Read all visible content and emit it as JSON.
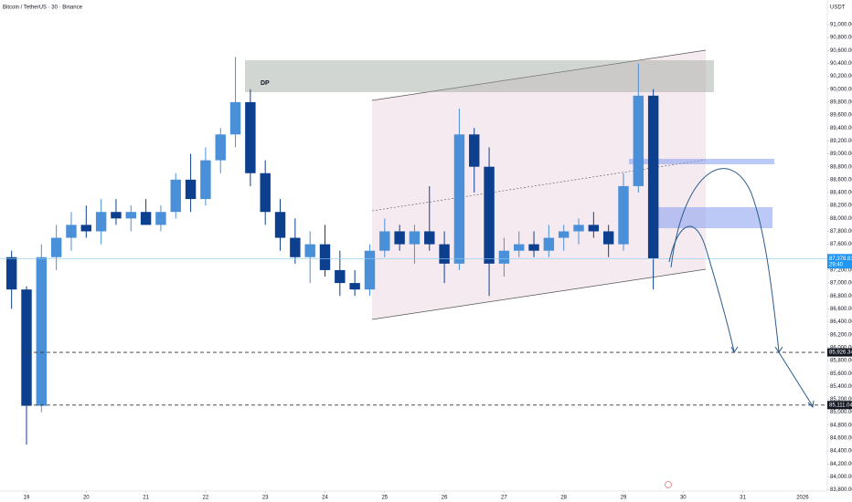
{
  "chart_data": {
    "type": "candlestick",
    "title": "Bitcoin / TetherUS · 30 · Binance",
    "currency": "USDT",
    "annotation": "DP",
    "countdown": "29:40",
    "up_color": "#4a90d9",
    "down_color": "#0d3f8f",
    "grid": false,
    "xlim": [
      18.556,
      32.415
    ],
    "ylim": [
      83780,
      91381
    ],
    "xticks": [
      19,
      20,
      21,
      22,
      23,
      24,
      25,
      26,
      27,
      28,
      29,
      30,
      31,
      {
        "value": 32,
        "label": "2026"
      }
    ],
    "yticks": [
      {
        "value": 83800,
        "label": "83,800.00"
      },
      {
        "value": 84000,
        "label": "84,000.00"
      },
      {
        "value": 84200,
        "label": "84,200.00"
      },
      {
        "value": 84400,
        "label": "84,400.00"
      },
      {
        "value": 84600,
        "label": "84,600.00"
      },
      {
        "value": 84800,
        "label": "84,800.00"
      },
      {
        "value": 85000,
        "label": "85,000.00"
      },
      {
        "value": 85200,
        "label": "85,200.00"
      },
      {
        "value": 85400,
        "label": "85,400.00"
      },
      {
        "value": 85600,
        "label": "85,600.00"
      },
      {
        "value": 85800,
        "label": "85,800.00"
      },
      {
        "value": 86000,
        "label": "86,000.00"
      },
      {
        "value": 86200,
        "label": "86,200.00"
      },
      {
        "value": 86400,
        "label": "86,400.00"
      },
      {
        "value": 86600,
        "label": "86,600.00"
      },
      {
        "value": 86800,
        "label": "86,800.00"
      },
      {
        "value": 87000,
        "label": "87,000.00"
      },
      {
        "value": 87200,
        "label": "87,200.00"
      },
      {
        "value": 87400,
        "label": "87,400.00"
      },
      {
        "value": 87600,
        "label": "87,600.00"
      },
      {
        "value": 87800,
        "label": "87,800.00"
      },
      {
        "value": 88000,
        "label": "88,000.00"
      },
      {
        "value": 88200,
        "label": "88,200.00"
      },
      {
        "value": 88400,
        "label": "88,400.00"
      },
      {
        "value": 88600,
        "label": "88,600.00"
      },
      {
        "value": 88800,
        "label": "88,800.00"
      },
      {
        "value": 89000,
        "label": "89,000.00"
      },
      {
        "value": 89200,
        "label": "89,200.00"
      },
      {
        "value": 89400,
        "label": "89,400.00"
      },
      {
        "value": 89600,
        "label": "89,600.00"
      },
      {
        "value": 89800,
        "label": "89,800.00"
      },
      {
        "value": 90000,
        "label": "90,000.00"
      },
      {
        "value": 90200,
        "label": "90,200.00"
      },
      {
        "value": 90400,
        "label": "90,400.00"
      },
      {
        "value": 90600,
        "label": "90,600.00"
      },
      {
        "value": 90800,
        "label": "90,800.00"
      },
      {
        "value": 91000,
        "label": "91,000.00"
      }
    ],
    "x": [
      18.75,
      19,
      19.25,
      19.5,
      19.75,
      20,
      20.25,
      20.5,
      20.75,
      21,
      21.25,
      21.5,
      21.75,
      22,
      22.25,
      22.5,
      22.75,
      23,
      23.25,
      23.5,
      23.75,
      24,
      24.25,
      24.5,
      24.75,
      25,
      25.25,
      25.5,
      25.75,
      26,
      26.25,
      26.5,
      26.75,
      27,
      27.25,
      27.5,
      27.75,
      28,
      28.25,
      28.5,
      28.75,
      29,
      29.25,
      29.5
    ],
    "open": [
      87400,
      86900,
      85100,
      87400,
      87700,
      87900,
      87800,
      88100,
      88000,
      88100,
      87900,
      88100,
      88600,
      88300,
      88900,
      89300,
      89800,
      88700,
      88100,
      87700,
      87400,
      87600,
      87200,
      87000,
      86900,
      87500,
      87800,
      87600,
      87800,
      87600,
      87300,
      89300,
      88800,
      87300,
      87500,
      87600,
      87500,
      87700,
      87800,
      87900,
      87800,
      87600,
      88500,
      89900
    ],
    "high": [
      87500,
      86950,
      87600,
      87900,
      88100,
      88200,
      88300,
      88300,
      88200,
      88300,
      88200,
      88700,
      89000,
      89100,
      89400,
      90500,
      90000,
      88900,
      88300,
      88000,
      87800,
      87900,
      87500,
      87200,
      87600,
      88000,
      87900,
      87900,
      88500,
      87800,
      89700,
      89400,
      89100,
      87700,
      87800,
      87800,
      87900,
      87900,
      88000,
      88100,
      87900,
      88700,
      90400,
      90000
    ],
    "low": [
      86600,
      84500,
      85000,
      87200,
      87500,
      87700,
      87600,
      87900,
      87800,
      87900,
      87800,
      88000,
      88100,
      88200,
      88700,
      89100,
      88500,
      87900,
      87500,
      87300,
      87000,
      87100,
      86800,
      86800,
      86800,
      87400,
      87500,
      87300,
      87500,
      87000,
      87200,
      88400,
      86800,
      87100,
      87400,
      87400,
      87400,
      87500,
      87600,
      87700,
      87400,
      87500,
      88400,
      86900
    ],
    "close": [
      86900,
      85100,
      87400,
      87700,
      87900,
      87800,
      88100,
      88000,
      88100,
      87900,
      88100,
      88600,
      88300,
      88900,
      89300,
      89800,
      88700,
      88100,
      87700,
      87400,
      87600,
      87200,
      87000,
      86900,
      87500,
      87800,
      87600,
      87800,
      87600,
      87300,
      89300,
      88800,
      87300,
      87500,
      87600,
      87500,
      87700,
      87800,
      87900,
      87800,
      87600,
      88500,
      89900,
      87378.81
    ],
    "price_labels": [
      {
        "value": 87378.81,
        "label": "87,378.81"
      },
      {
        "value": 85926.34,
        "label": "85,926.34"
      },
      {
        "value": 85111.04,
        "label": "85,111.04"
      }
    ]
  }
}
